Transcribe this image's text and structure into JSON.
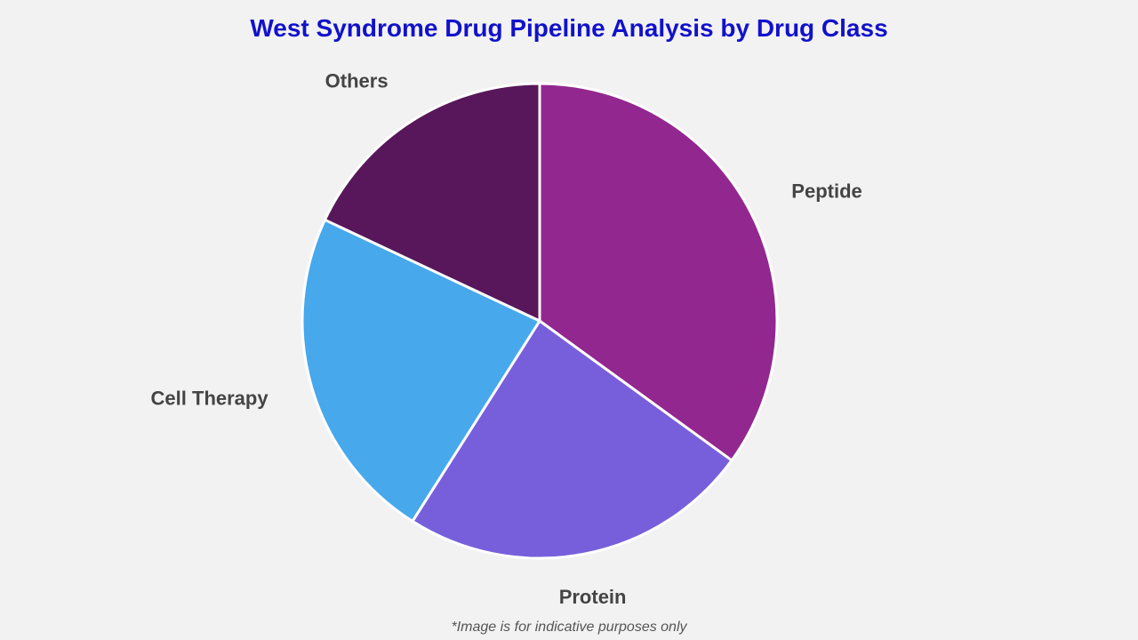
{
  "chart_data": {
    "type": "pie",
    "title": "West Syndrome Drug Pipeline Analysis by Drug Class",
    "categories": [
      "Peptide",
      "Protein",
      "Cell Therapy",
      "Others"
    ],
    "values": [
      35,
      24,
      23,
      18
    ],
    "colors": [
      "#92278f",
      "#775fdc",
      "#47a8ec",
      "#58175a"
    ],
    "start_angle_deg": 0,
    "direction": "clockwise",
    "legend": "none"
  },
  "footnote": "*Image is for indicative purposes only"
}
